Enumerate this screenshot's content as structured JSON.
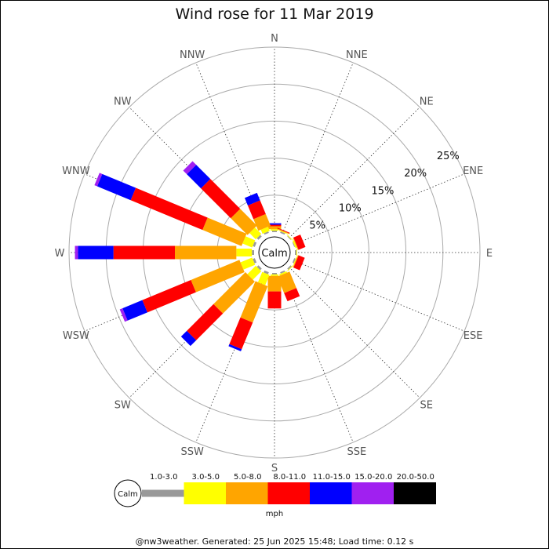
{
  "chart_data": {
    "type": "windrose",
    "title": "Wind rose for 11 Mar 2019",
    "directions": [
      "N",
      "NNE",
      "NE",
      "ENE",
      "E",
      "ESE",
      "SE",
      "SSE",
      "S",
      "SSW",
      "SW",
      "WSW",
      "W",
      "WNW",
      "NW",
      "NNW"
    ],
    "ring_labels": [
      "5%",
      "10%",
      "15%",
      "20%",
      "25%"
    ],
    "ring_values": [
      5,
      10,
      15,
      20,
      25
    ],
    "r_max": 25,
    "calm_label": "Calm",
    "unit": "mph",
    "speed_bins": [
      {
        "label": "1.0-3.0",
        "color": "#999999"
      },
      {
        "label": "3.0-5.0",
        "color": "#ffff00"
      },
      {
        "label": "5.0-8.0",
        "color": "#ffa500"
      },
      {
        "label": "8.0-11.0",
        "color": "#ff0000"
      },
      {
        "label": "11.0-15.0",
        "color": "#0000ff"
      },
      {
        "label": "15.0-20.0",
        "color": "#a020f0"
      },
      {
        "label": "20.0-50.0",
        "color": "#000000"
      }
    ],
    "series_cumulative_percent": {
      "N": [
        0.2,
        0.4,
        0.8,
        1.0,
        1.2,
        1.2,
        1.2
      ],
      "NNE": [
        0.2,
        0.3,
        0.4,
        0.5,
        0.5,
        0.5,
        0.5
      ],
      "NE": [
        0.1,
        0.2,
        0.2,
        0.2,
        0.2,
        0.2,
        0.2
      ],
      "ENE": [
        0.1,
        0.3,
        0.4,
        1.4,
        1.4,
        1.4,
        1.4
      ],
      "E": [
        0.2,
        0.3,
        0.3,
        0.3,
        0.3,
        0.3,
        0.3
      ],
      "ESE": [
        0.2,
        0.3,
        0.4,
        1.3,
        1.3,
        1.3,
        1.3
      ],
      "SE": [
        0.2,
        0.3,
        0.3,
        0.3,
        0.3,
        0.3,
        0.3
      ],
      "SSE": [
        0.2,
        0.4,
        2.8,
        4.0,
        4.0,
        4.0,
        4.0
      ],
      "S": [
        0.2,
        0.4,
        2.5,
        4.8,
        4.8,
        4.8,
        4.8
      ],
      "SSW": [
        0.3,
        1.8,
        7.1,
        11.0,
        11.3,
        11.3,
        11.3
      ],
      "SW": [
        0.3,
        1.9,
        8.0,
        13.1,
        14.2,
        14.2,
        14.2
      ],
      "WSW": [
        0.3,
        2.0,
        9.1,
        16.2,
        19.1,
        19.5,
        19.5
      ],
      "W": [
        0.3,
        2.4,
        10.7,
        19.0,
        23.8,
        24.2,
        24.2
      ],
      "WNW": [
        0.3,
        1.7,
        7.4,
        17.9,
        22.8,
        23.2,
        23.2
      ],
      "NW": [
        0.3,
        1.5,
        4.7,
        10.4,
        13.1,
        13.8,
        13.8
      ],
      "NNW": [
        0.2,
        0.8,
        2.5,
        4.5,
        5.6,
        5.6,
        5.6
      ]
    }
  },
  "footer": "@nw3weather. Generated: 25 Jun 2025 15:48; Load time: 0.12 s"
}
